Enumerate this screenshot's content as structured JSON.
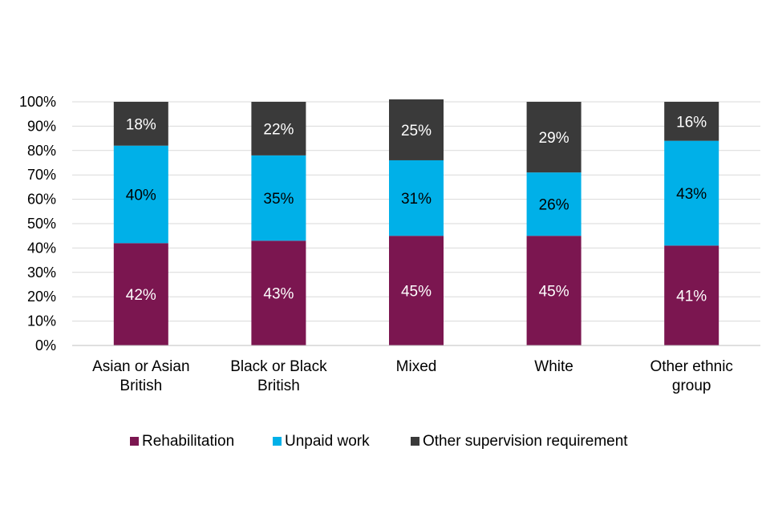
{
  "chart_data": {
    "type": "bar",
    "stacked": true,
    "categories": [
      [
        "Asian or Asian",
        "British"
      ],
      [
        "Black or Black",
        "British"
      ],
      [
        "Mixed"
      ],
      [
        "White"
      ],
      [
        "Other ethnic",
        "group"
      ]
    ],
    "series": [
      {
        "name": "Rehabilitation",
        "color": "#7b1650",
        "label_color": "#ffffff",
        "values": [
          42,
          43,
          45,
          45,
          41
        ],
        "labels": [
          "42%",
          "43%",
          "45%",
          "45%",
          "41%"
        ]
      },
      {
        "name": "Unpaid work",
        "color": "#00b0e8",
        "label_color": "#000000",
        "values": [
          40,
          35,
          31,
          26,
          43
        ],
        "labels": [
          "40%",
          "35%",
          "31%",
          "26%",
          "43%"
        ]
      },
      {
        "name": "Other supervision requirement",
        "color": "#3a3a3a",
        "label_color": "#ffffff",
        "values": [
          18,
          22,
          25,
          29,
          16
        ],
        "labels": [
          "18%",
          "22%",
          "25%",
          "29%",
          "16%"
        ]
      }
    ],
    "yticks": [
      "0%",
      "10%",
      "20%",
      "30%",
      "40%",
      "50%",
      "60%",
      "70%",
      "80%",
      "90%",
      "100%"
    ],
    "ylim": [
      0,
      100
    ],
    "grid": true,
    "legend_position": "bottom",
    "title": "",
    "xlabel": "",
    "ylabel": ""
  }
}
